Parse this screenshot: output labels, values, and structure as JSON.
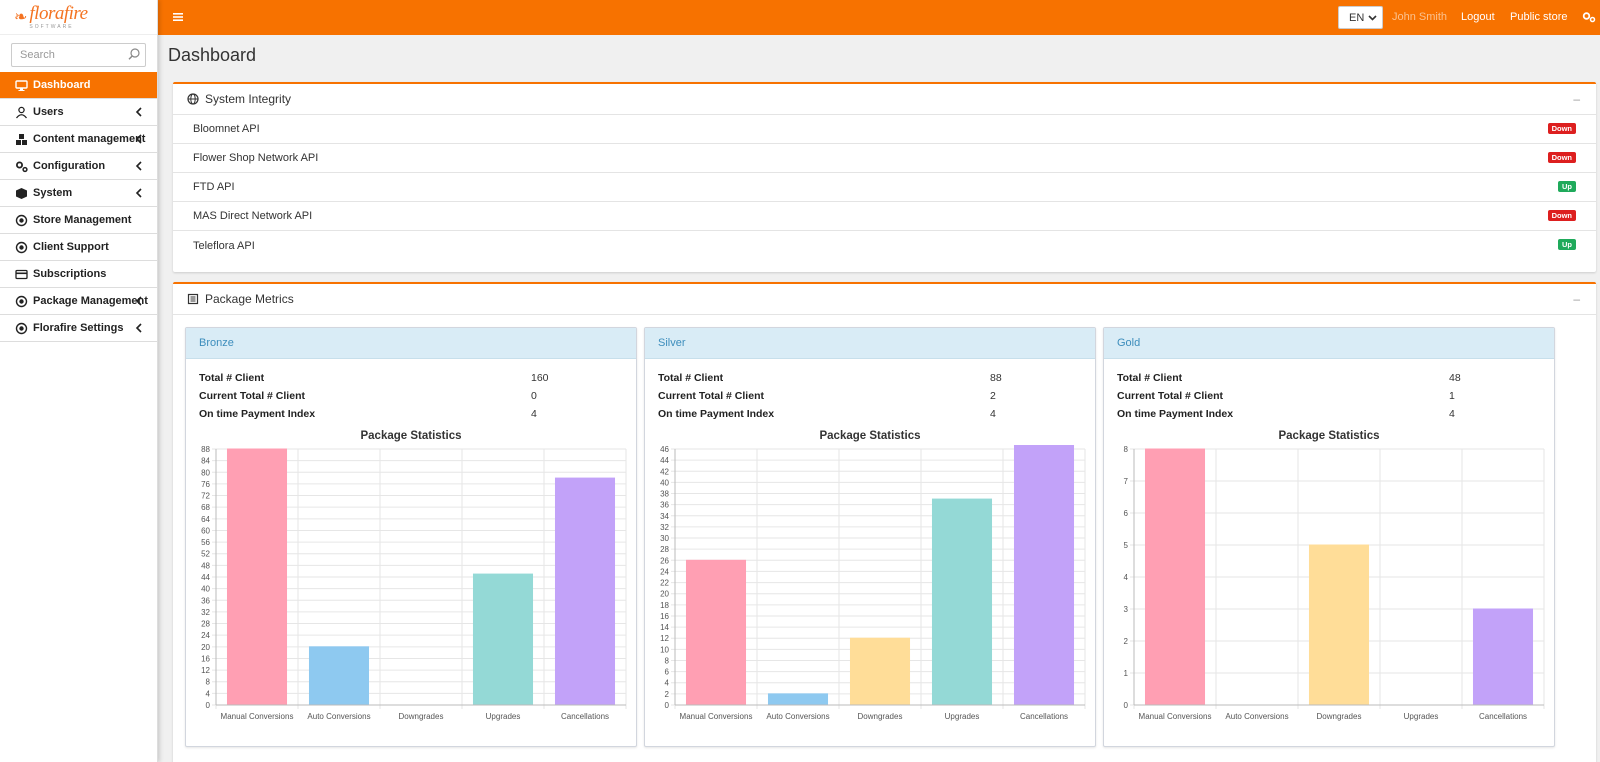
{
  "sidebar": {
    "logo": {
      "main": "florafire",
      "sub": "SOFTWARE"
    },
    "search_placeholder": "Search",
    "items": [
      {
        "label": "Dashboard",
        "icon": "monitor-icon",
        "active": true,
        "chevron": false
      },
      {
        "label": "Users",
        "icon": "user-icon",
        "active": false,
        "chevron": true
      },
      {
        "label": "Content management",
        "icon": "cubes-icon",
        "active": false,
        "chevron": true
      },
      {
        "label": "Configuration",
        "icon": "gears-icon",
        "active": false,
        "chevron": true
      },
      {
        "label": "System",
        "icon": "cube-icon",
        "active": false,
        "chevron": true
      },
      {
        "label": "Store Management",
        "icon": "circle-dot-icon",
        "active": false,
        "chevron": false
      },
      {
        "label": "Client Support",
        "icon": "circle-dot-icon",
        "active": false,
        "chevron": false
      },
      {
        "label": "Subscriptions",
        "icon": "credit-card-icon",
        "active": false,
        "chevron": false
      },
      {
        "label": "Package Management",
        "icon": "circle-dot-icon",
        "active": false,
        "chevron": true
      },
      {
        "label": "Florafire Settings",
        "icon": "circle-dot-icon",
        "active": false,
        "chevron": true
      }
    ]
  },
  "topbar": {
    "lang": "EN",
    "user": "John Smith",
    "logout": "Logout",
    "public_store": "Public store"
  },
  "page_title": "Dashboard",
  "integrity": {
    "title": "System Integrity",
    "collapse": "–",
    "rows": [
      {
        "name": "Bloomnet API",
        "status": "Down"
      },
      {
        "name": "Flower Shop Network API",
        "status": "Down"
      },
      {
        "name": "FTD API",
        "status": "Up"
      },
      {
        "name": "MAS Direct Network API",
        "status": "Down"
      },
      {
        "name": "Teleflora API",
        "status": "Up"
      }
    ]
  },
  "colors": {
    "down": "#dd1f1f",
    "up": "#1faa5b",
    "accent": "#f77200"
  },
  "metrics": {
    "title": "Package Metrics",
    "collapse": "–",
    "stat_labels": [
      "Total # Client",
      "Current Total # Client",
      "On time Payment Index"
    ],
    "packages": [
      {
        "name": "Bronze",
        "stats": [
          "160",
          "0",
          "4"
        ]
      },
      {
        "name": "Silver",
        "stats": [
          "88",
          "2",
          "4"
        ]
      },
      {
        "name": "Gold",
        "stats": [
          "48",
          "1",
          "4"
        ]
      }
    ]
  },
  "chart_data": [
    {
      "type": "bar",
      "title": "Package Statistics",
      "categories": [
        "Manual Conversions",
        "Auto Conversions",
        "Downgrades",
        "Upgrades",
        "Cancellations"
      ],
      "values": [
        88,
        20,
        0,
        45,
        78
      ],
      "colors": [
        "#ff9fb3",
        "#8ec9f0",
        "#ffdd98",
        "#94d9d6",
        "#c2a2f9"
      ],
      "ylim": [
        0,
        88
      ],
      "ystep": 4,
      "grid": true
    },
    {
      "type": "bar",
      "title": "Package Statistics",
      "categories": [
        "Manual Conversions",
        "Auto Conversions",
        "Downgrades",
        "Upgrades",
        "Cancellations"
      ],
      "values": [
        26,
        2,
        12,
        37,
        47
      ],
      "colors": [
        "#ff9fb3",
        "#8ec9f0",
        "#ffdd98",
        "#94d9d6",
        "#c2a2f9"
      ],
      "ylim": [
        0,
        46
      ],
      "ystep": 2,
      "grid": true
    },
    {
      "type": "bar",
      "title": "Package Statistics",
      "categories": [
        "Manual Conversions",
        "Auto Conversions",
        "Downgrades",
        "Upgrades",
        "Cancellations"
      ],
      "values": [
        8,
        0,
        5,
        0,
        3
      ],
      "colors": [
        "#ff9fb3",
        "#8ec9f0",
        "#ffdd98",
        "#94d9d6",
        "#c2a2f9"
      ],
      "ylim": [
        0,
        8
      ],
      "ystep": 1,
      "grid": true
    }
  ]
}
